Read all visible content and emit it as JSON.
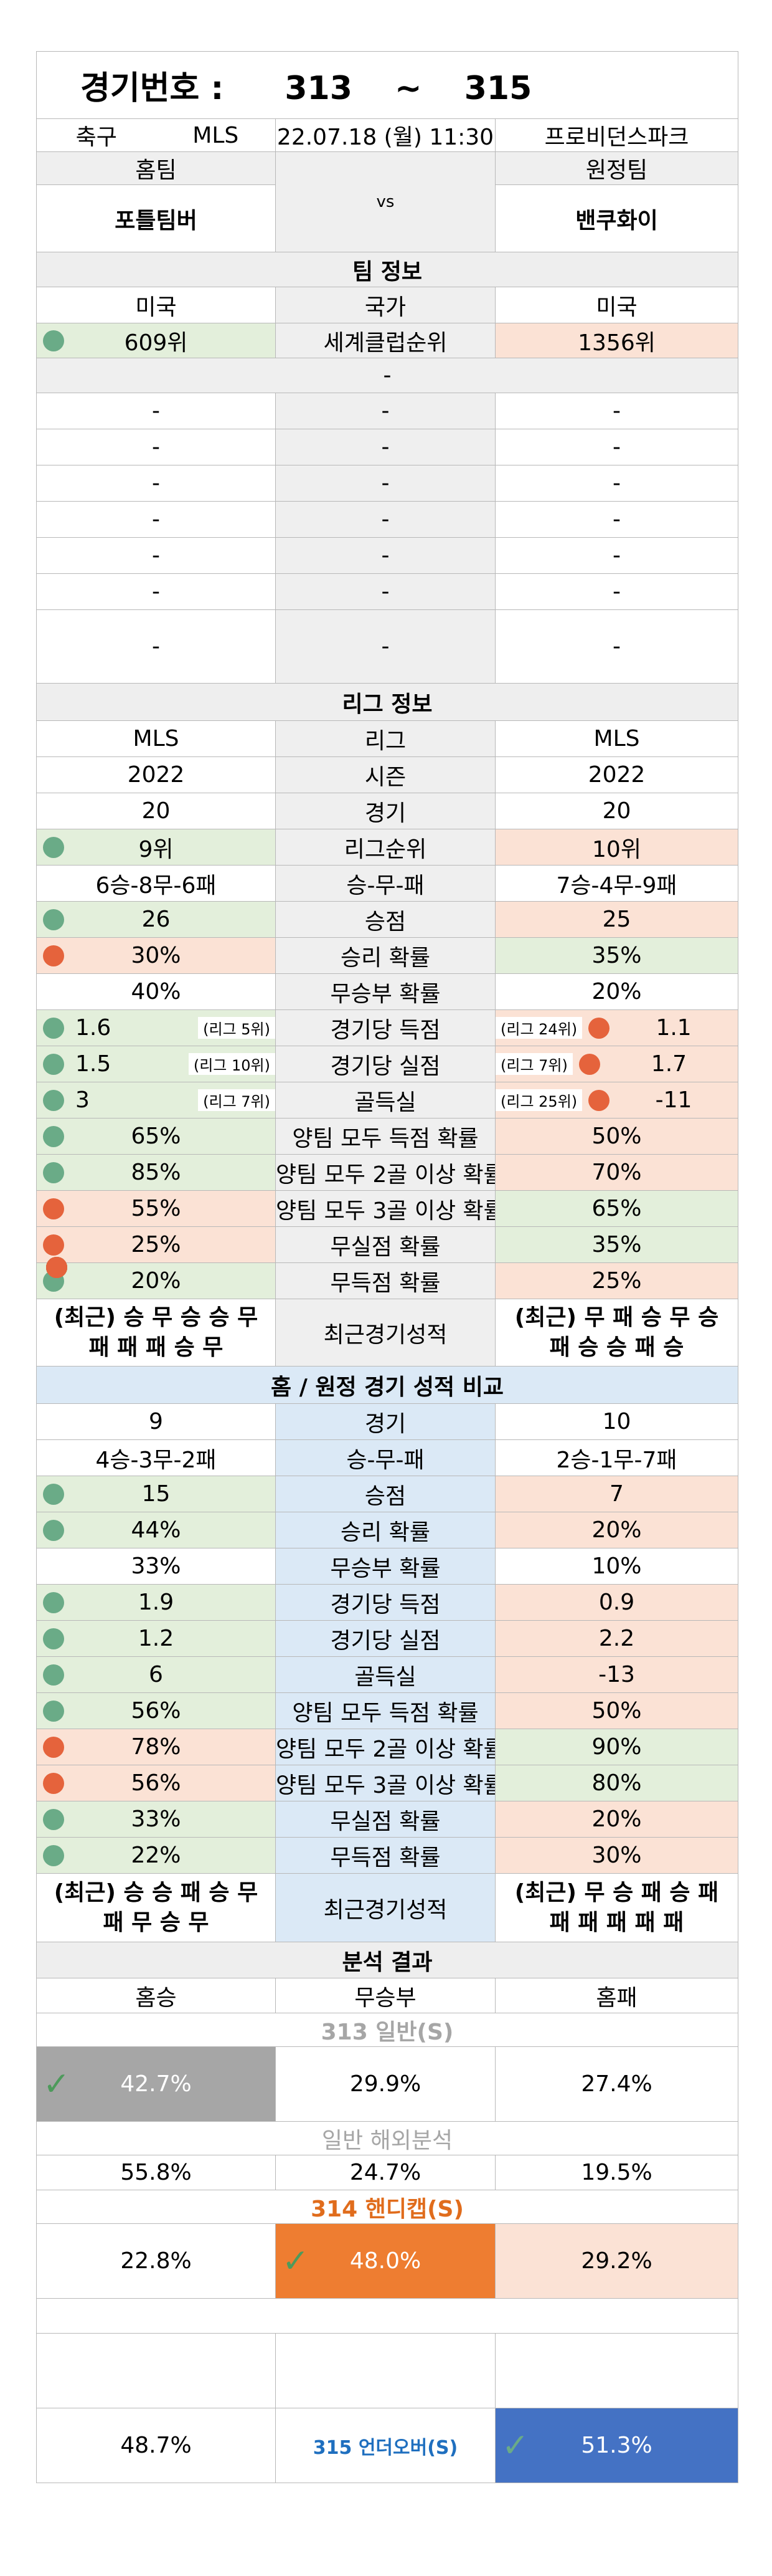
{
  "header": {
    "label": "경기번호 :",
    "from": "313",
    "tilde": "~",
    "to": "315"
  },
  "match": {
    "sport": "축구",
    "league": "MLS",
    "datetime": "22.07.18 (월) 11:30",
    "venue": "프로비던스파크"
  },
  "teams": {
    "home_label": "홈팀",
    "away_label": "원정팀",
    "home": "포틀팀버",
    "away": "밴쿠화이",
    "vs": "vs"
  },
  "team_info": {
    "title": "팀 정보",
    "country": {
      "home": "미국",
      "label": "국가",
      "away": "미국"
    },
    "rank": {
      "home": "609위",
      "label": "세계클럽순위",
      "away": "1356위"
    },
    "dash_header": "-",
    "empty_rows": [
      [
        "-",
        "-",
        "-"
      ],
      [
        "-",
        "-",
        "-"
      ],
      [
        "-",
        "-",
        "-"
      ],
      [
        "-",
        "-",
        "-"
      ],
      [
        "-",
        "-",
        "-"
      ],
      [
        "-",
        "-",
        "-"
      ],
      [
        "-",
        "-",
        "-"
      ]
    ]
  },
  "league_info": {
    "title": "리그 정보",
    "rows": [
      {
        "home": "MLS",
        "label": "리그",
        "away": "MLS"
      },
      {
        "home": "2022",
        "label": "시즌",
        "away": "2022"
      },
      {
        "home": "20",
        "label": "경기",
        "away": "20"
      },
      {
        "home": "9위",
        "label": "리그순위",
        "away": "10위"
      },
      {
        "home": "6승-8무-6패",
        "label": "승-무-패",
        "away": "7승-4무-9패"
      },
      {
        "home": "26",
        "label": "승점",
        "away": "25"
      },
      {
        "home": "30%",
        "label": "승리 확률",
        "away": "35%"
      },
      {
        "home": "40%",
        "label": "무승부 확률",
        "away": "20%"
      },
      {
        "home": "1.6",
        "home_rank": "(리그 5위)",
        "label": "경기당 득점",
        "away_rank": "(리그 24위)",
        "away": "1.1"
      },
      {
        "home": "1.5",
        "home_rank": "(리그 10위)",
        "label": "경기당 실점",
        "away_rank": "(리그 7위)",
        "away": "1.7"
      },
      {
        "home": "3",
        "home_rank": "(리그 7위)",
        "label": "골득실",
        "away_rank": "(리그 25위)",
        "away": "-11"
      },
      {
        "home": "65%",
        "label": "양팀 모두 득점 확률",
        "away": "50%"
      },
      {
        "home": "85%",
        "label": "양팀 모두 2골 이상 확률",
        "away": "70%"
      },
      {
        "home": "55%",
        "label": "양팀 모두 3골 이상 확률",
        "away": "65%"
      },
      {
        "home": "25%",
        "label": "무실점 확률",
        "away": "35%"
      },
      {
        "home": "20%",
        "label": "무득점 확률",
        "away": "25%"
      }
    ],
    "recent": {
      "home_l1": "(최근) 승 무 승 승 무",
      "home_l2": "패 패 패 승 무",
      "label": "최근경기성적",
      "away_l1": "(최근) 무 패 승 무 승",
      "away_l2": "패 승 승 패 승"
    }
  },
  "home_away": {
    "title": "홈 / 원정 경기 성적 비교",
    "rows": [
      {
        "home": "9",
        "label": "경기",
        "away": "10"
      },
      {
        "home": "4승-3무-2패",
        "label": "승-무-패",
        "away": "2승-1무-7패"
      },
      {
        "home": "15",
        "label": "승점",
        "away": "7"
      },
      {
        "home": "44%",
        "label": "승리 확률",
        "away": "20%"
      },
      {
        "home": "33%",
        "label": "무승부 확률",
        "away": "10%"
      },
      {
        "home": "1.9",
        "label": "경기당 득점",
        "away": "0.9"
      },
      {
        "home": "1.2",
        "label": "경기당 실점",
        "away": "2.2"
      },
      {
        "home": "6",
        "label": "골득실",
        "away": "-13"
      },
      {
        "home": "56%",
        "label": "양팀 모두 득점 확률",
        "away": "50%"
      },
      {
        "home": "78%",
        "label": "양팀 모두 2골 이상 확률",
        "away": "90%"
      },
      {
        "home": "56%",
        "label": "양팀 모두 3골 이상 확률",
        "away": "80%"
      },
      {
        "home": "33%",
        "label": "무실점 확률",
        "away": "20%"
      },
      {
        "home": "22%",
        "label": "무득점 확률",
        "away": "30%"
      }
    ],
    "recent": {
      "home_l1": "(최근) 승 승 패 승 무",
      "home_l2": "패 무 승 무",
      "label": "최근경기성적",
      "away_l1": "(최근) 무 승 패 승 패",
      "away_l2": "패 패 패 패 패"
    }
  },
  "analysis": {
    "title": "분석 결과",
    "cols": [
      "홈승",
      "무승부",
      "홈패"
    ],
    "s313": {
      "title": "313 일반(S)",
      "home": "42.7%",
      "draw": "29.9%",
      "away": "27.4%"
    },
    "overseas": {
      "title": "일반 해외분석",
      "home": "55.8%",
      "draw": "24.7%",
      "away": "19.5%"
    },
    "s314": {
      "title": "314 핸디캡(S)",
      "home": "22.8%",
      "draw": "48.0%",
      "away": "29.2%"
    },
    "s315": {
      "under": "48.7%",
      "label": "315 언더오버(S)",
      "over": "51.3%"
    },
    "check": "✓"
  },
  "colors": {
    "green": "#6aab87",
    "red": "#e5633c",
    "orange": "#ee7d31",
    "blue": "#4472c4",
    "gray_pick": "#a6a6a6",
    "light_blue": "#dbe9f6",
    "light_green": "#e3efdb",
    "light_red": "#fbe2d5",
    "blue_text": "#1f6fbf",
    "orange_text": "#e06c1c"
  }
}
